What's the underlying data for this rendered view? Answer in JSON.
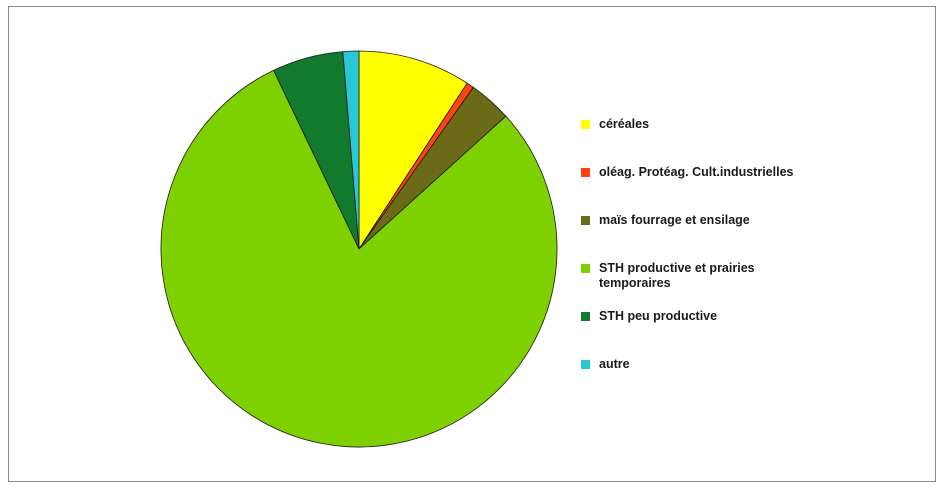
{
  "chart_data": {
    "type": "pie",
    "legend_position": "right",
    "slices": [
      {
        "label": "céréales",
        "value": 9.2,
        "color": "#ffff00"
      },
      {
        "label": "oléag. Protéag. Cult.industrielles",
        "value": 0.6,
        "color": "#ff420e"
      },
      {
        "label": "maïs fourrage et ensilage",
        "value": 3.5,
        "color": "#6b6b17"
      },
      {
        "label": "STH productive et prairies temporaires",
        "value": 79.6,
        "color": "#7fd000"
      },
      {
        "label": "STH peu productive",
        "value": 5.8,
        "color": "#117a2c"
      },
      {
        "label": "autre",
        "value": 1.3,
        "color": "#26c8d6"
      }
    ]
  }
}
